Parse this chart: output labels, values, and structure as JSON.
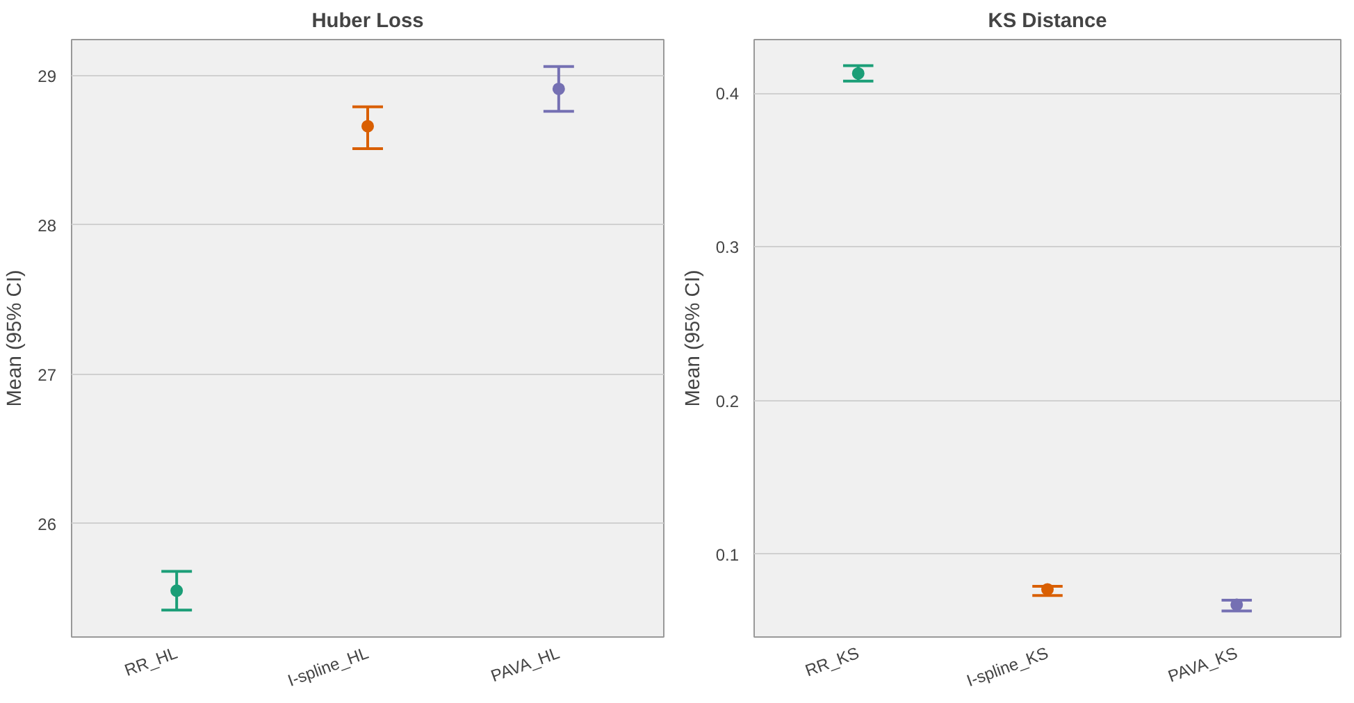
{
  "chart_data": [
    {
      "type": "scatter",
      "title": "Huber Loss",
      "ylabel": "Mean (95% CI)",
      "categories": [
        "RR_HL",
        "I-spline_HL",
        "PAVA_HL"
      ],
      "values": [
        25.55,
        28.66,
        28.91
      ],
      "errors": [
        [
          25.42,
          25.68
        ],
        [
          28.51,
          28.79
        ],
        [
          28.76,
          29.06
        ]
      ],
      "colors": [
        "#1b9e77",
        "#d95f02",
        "#7570b3"
      ],
      "ylim": [
        25.24,
        29.24
      ],
      "yticks": [
        26,
        27,
        28,
        29
      ],
      "grid": "y",
      "marker": "circle"
    },
    {
      "type": "scatter",
      "title": "KS Distance",
      "ylabel": "Mean (95% CI)",
      "categories": [
        "RR_KS",
        "I-spline_KS",
        "PAVA_KS"
      ],
      "values": [
        0.413,
        0.077,
        0.067
      ],
      "errors": [
        [
          0.408,
          0.418
        ],
        [
          0.073,
          0.079
        ],
        [
          0.063,
          0.07
        ]
      ],
      "colors": [
        "#1b9e77",
        "#d95f02",
        "#7570b3"
      ],
      "ylim": [
        0.046,
        0.435
      ],
      "yticks": [
        0.1,
        0.2,
        0.3,
        0.4
      ],
      "grid": "y",
      "marker": "circle"
    }
  ]
}
